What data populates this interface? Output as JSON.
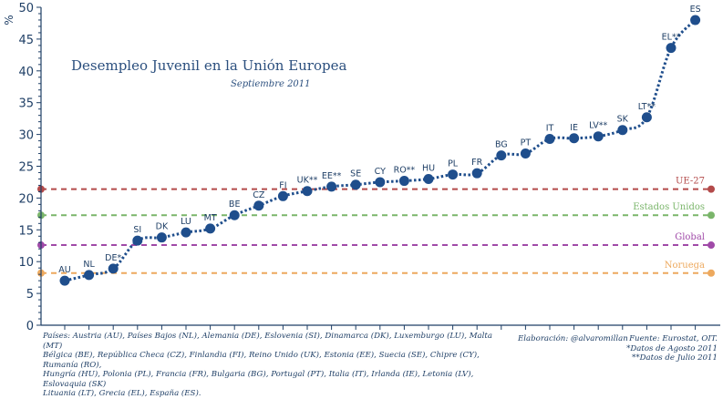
{
  "chart_data": {
    "type": "line",
    "title": "Desempleo Juvenil en la Unión Europea",
    "subtitle": "Septiembre 2011",
    "ylabel": "%",
    "xlabel": "",
    "ylim": [
      0,
      50
    ],
    "yticks": [
      0,
      5,
      10,
      15,
      20,
      25,
      30,
      35,
      40,
      45,
      50
    ],
    "grid": false,
    "categories": [
      "AU",
      "NL",
      "DE*",
      "SI",
      "DK",
      "LU",
      "MT",
      "BE",
      "CZ",
      "FI",
      "UK**",
      "EE**",
      "SE",
      "CY",
      "RO**",
      "HU",
      "PL",
      "FR",
      "BG",
      "PT",
      "IT",
      "IE",
      "LV**",
      "SK",
      "LT**",
      "EL**",
      "ES"
    ],
    "series": [
      {
        "name": "Desempleo juvenil",
        "color": "#1f4e8c",
        "values": [
          7.0,
          7.9,
          8.9,
          13.3,
          13.8,
          14.6,
          15.2,
          17.3,
          18.8,
          20.3,
          21.1,
          21.8,
          22.1,
          22.5,
          22.7,
          23.0,
          23.7,
          23.9,
          26.7,
          27.0,
          29.3,
          29.4,
          29.7,
          30.7,
          32.7,
          43.6,
          48.0
        ]
      }
    ],
    "reference_lines": [
      {
        "name": "UE-27",
        "value": 21.4,
        "color": "#b34a4a"
      },
      {
        "name": "Estados Unidos",
        "value": 17.3,
        "color": "#7ab56a"
      },
      {
        "name": "Global",
        "value": 12.6,
        "color": "#a04aa8"
      },
      {
        "name": "Noruega",
        "value": 8.2,
        "color": "#eda95e"
      }
    ]
  },
  "footer": {
    "countries_lines": [
      "Países: Austria (AU), Países Bajos (NL), Alemania (DE), Eslovenia (SI), Dinamarca (DK), Luxemburgo (LU), Malta (MT)",
      "Bélgica (BE), República Checa (CZ), Finlandia (FI), Reino Unido (UK), Estonia (EE), Suecia (SE), Chipre (CY), Rumanía (RO),",
      "Hungría (HU), Polonia (PL), Francia (FR), Bulgaria (BG), Portugal (PT), Italia (IT), Irlanda (IE), Letonia (LV), Eslovaquia (SK)",
      "Lituania (LT), Grecia (EL), España (ES)."
    ],
    "credit": "Elaboración: @alvaromillan",
    "source_lines": [
      "Fuente: Eurostat, OIT.",
      "*Datos de Agosto 2011",
      "**Datos de Julio 2011"
    ]
  }
}
